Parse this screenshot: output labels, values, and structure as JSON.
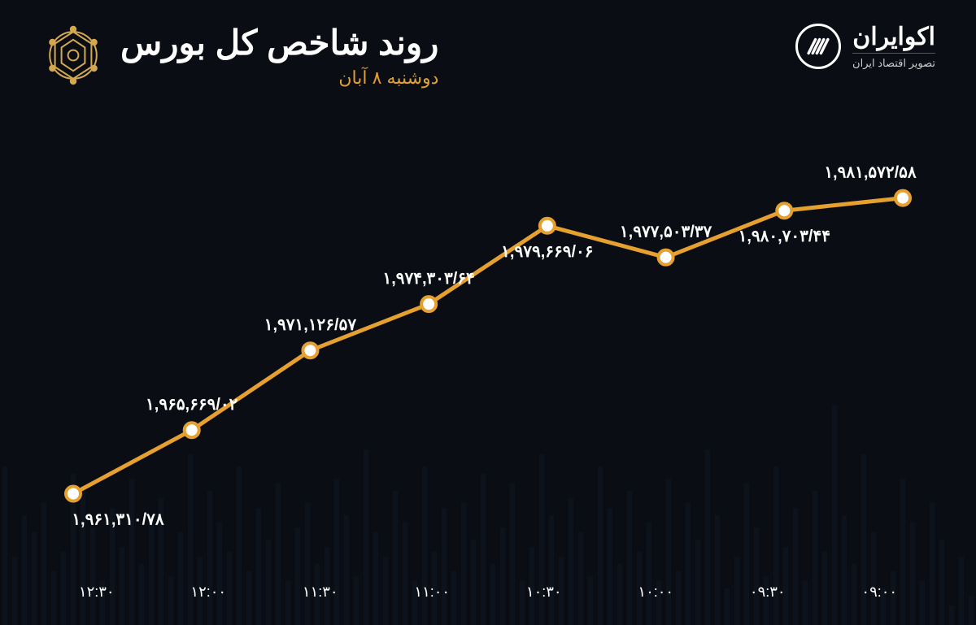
{
  "header": {
    "title": "روند شاخص کل بورس",
    "subtitle": "دوشنبه ۸ آبان",
    "brand_name": "اکوایران",
    "brand_tagline": "تصویر اقتصاد ایران"
  },
  "chart": {
    "type": "line",
    "background_color": "#0a0d14",
    "line_color": "#e6a030",
    "line_width": 5,
    "marker_fill": "#ffffff",
    "marker_stroke": "#e6a030",
    "marker_stroke_width": 4,
    "marker_radius": 9,
    "label_color": "#ffffff",
    "label_fontsize": 20,
    "bg_bar_color": "#1a3550",
    "axis_label_color": "#ffffff",
    "axis_fontsize": 18,
    "accent_color": "#e0a030",
    "x_labels": [
      "۰۹:۰۰",
      "۰۹:۳۰",
      "۱۰:۰۰",
      "۱۰:۳۰",
      "۱۱:۰۰",
      "۱۱:۳۰",
      "۱۲:۰۰",
      "۱۲:۳۰"
    ],
    "points": [
      {
        "x": 0,
        "value": 1961310.78,
        "label": "۱,۹۶۱,۳۱۰/۷۸",
        "label_pos": "below"
      },
      {
        "x": 1,
        "value": 1965669.02,
        "label": "۱,۹۶۵,۶۶۹/۰۲",
        "label_pos": "above"
      },
      {
        "x": 2,
        "value": 1971126.57,
        "label": "۱,۹۷۱,۱۲۶/۵۷",
        "label_pos": "above"
      },
      {
        "x": 3,
        "value": 1974303.64,
        "label": "۱,۹۷۴,۳۰۳/۶۴",
        "label_pos": "above"
      },
      {
        "x": 4,
        "value": 1979669.06,
        "label": "۱,۹۷۹,۶۶۹/۰۶",
        "label_pos": "below"
      },
      {
        "x": 5,
        "value": 1977503.37,
        "label": "۱,۹۷۷,۵۰۳/۳۷",
        "label_pos": "above"
      },
      {
        "x": 6,
        "value": 1980703.44,
        "label": "۱,۹۸۰,۷۰۳/۴۴",
        "label_pos": "below"
      },
      {
        "x": 7,
        "value": 1981572.58,
        "label": "۱,۹۸۱,۵۷۲/۵۸",
        "label_pos": "above"
      }
    ],
    "y_plot_min": 1959000,
    "y_plot_max": 1984000,
    "bg_bar_heights": [
      12,
      28,
      8,
      35,
      50,
      18,
      42,
      60,
      22,
      15,
      38,
      70,
      25,
      45,
      90,
      30,
      55,
      18,
      48,
      32,
      65,
      20,
      40,
      58,
      28,
      15,
      45,
      72,
      35,
      50,
      22,
      60,
      18,
      42,
      30,
      55,
      25,
      48,
      65,
      20,
      38,
      52,
      28,
      45,
      70,
      32,
      18,
      58,
      40,
      25,
      62,
      35,
      50,
      22,
      48,
      30,
      65,
      18,
      42,
      55,
      28,
      38,
      72,
      20,
      45,
      60,
      32,
      25,
      50,
      40,
      18,
      58,
      35,
      48,
      22,
      65,
      30,
      42,
      55,
      28,
      70,
      38,
      20,
      52,
      45,
      25,
      60,
      32,
      48,
      18,
      40,
      55,
      62,
      30,
      22,
      50,
      38,
      45,
      28,
      65
    ]
  }
}
